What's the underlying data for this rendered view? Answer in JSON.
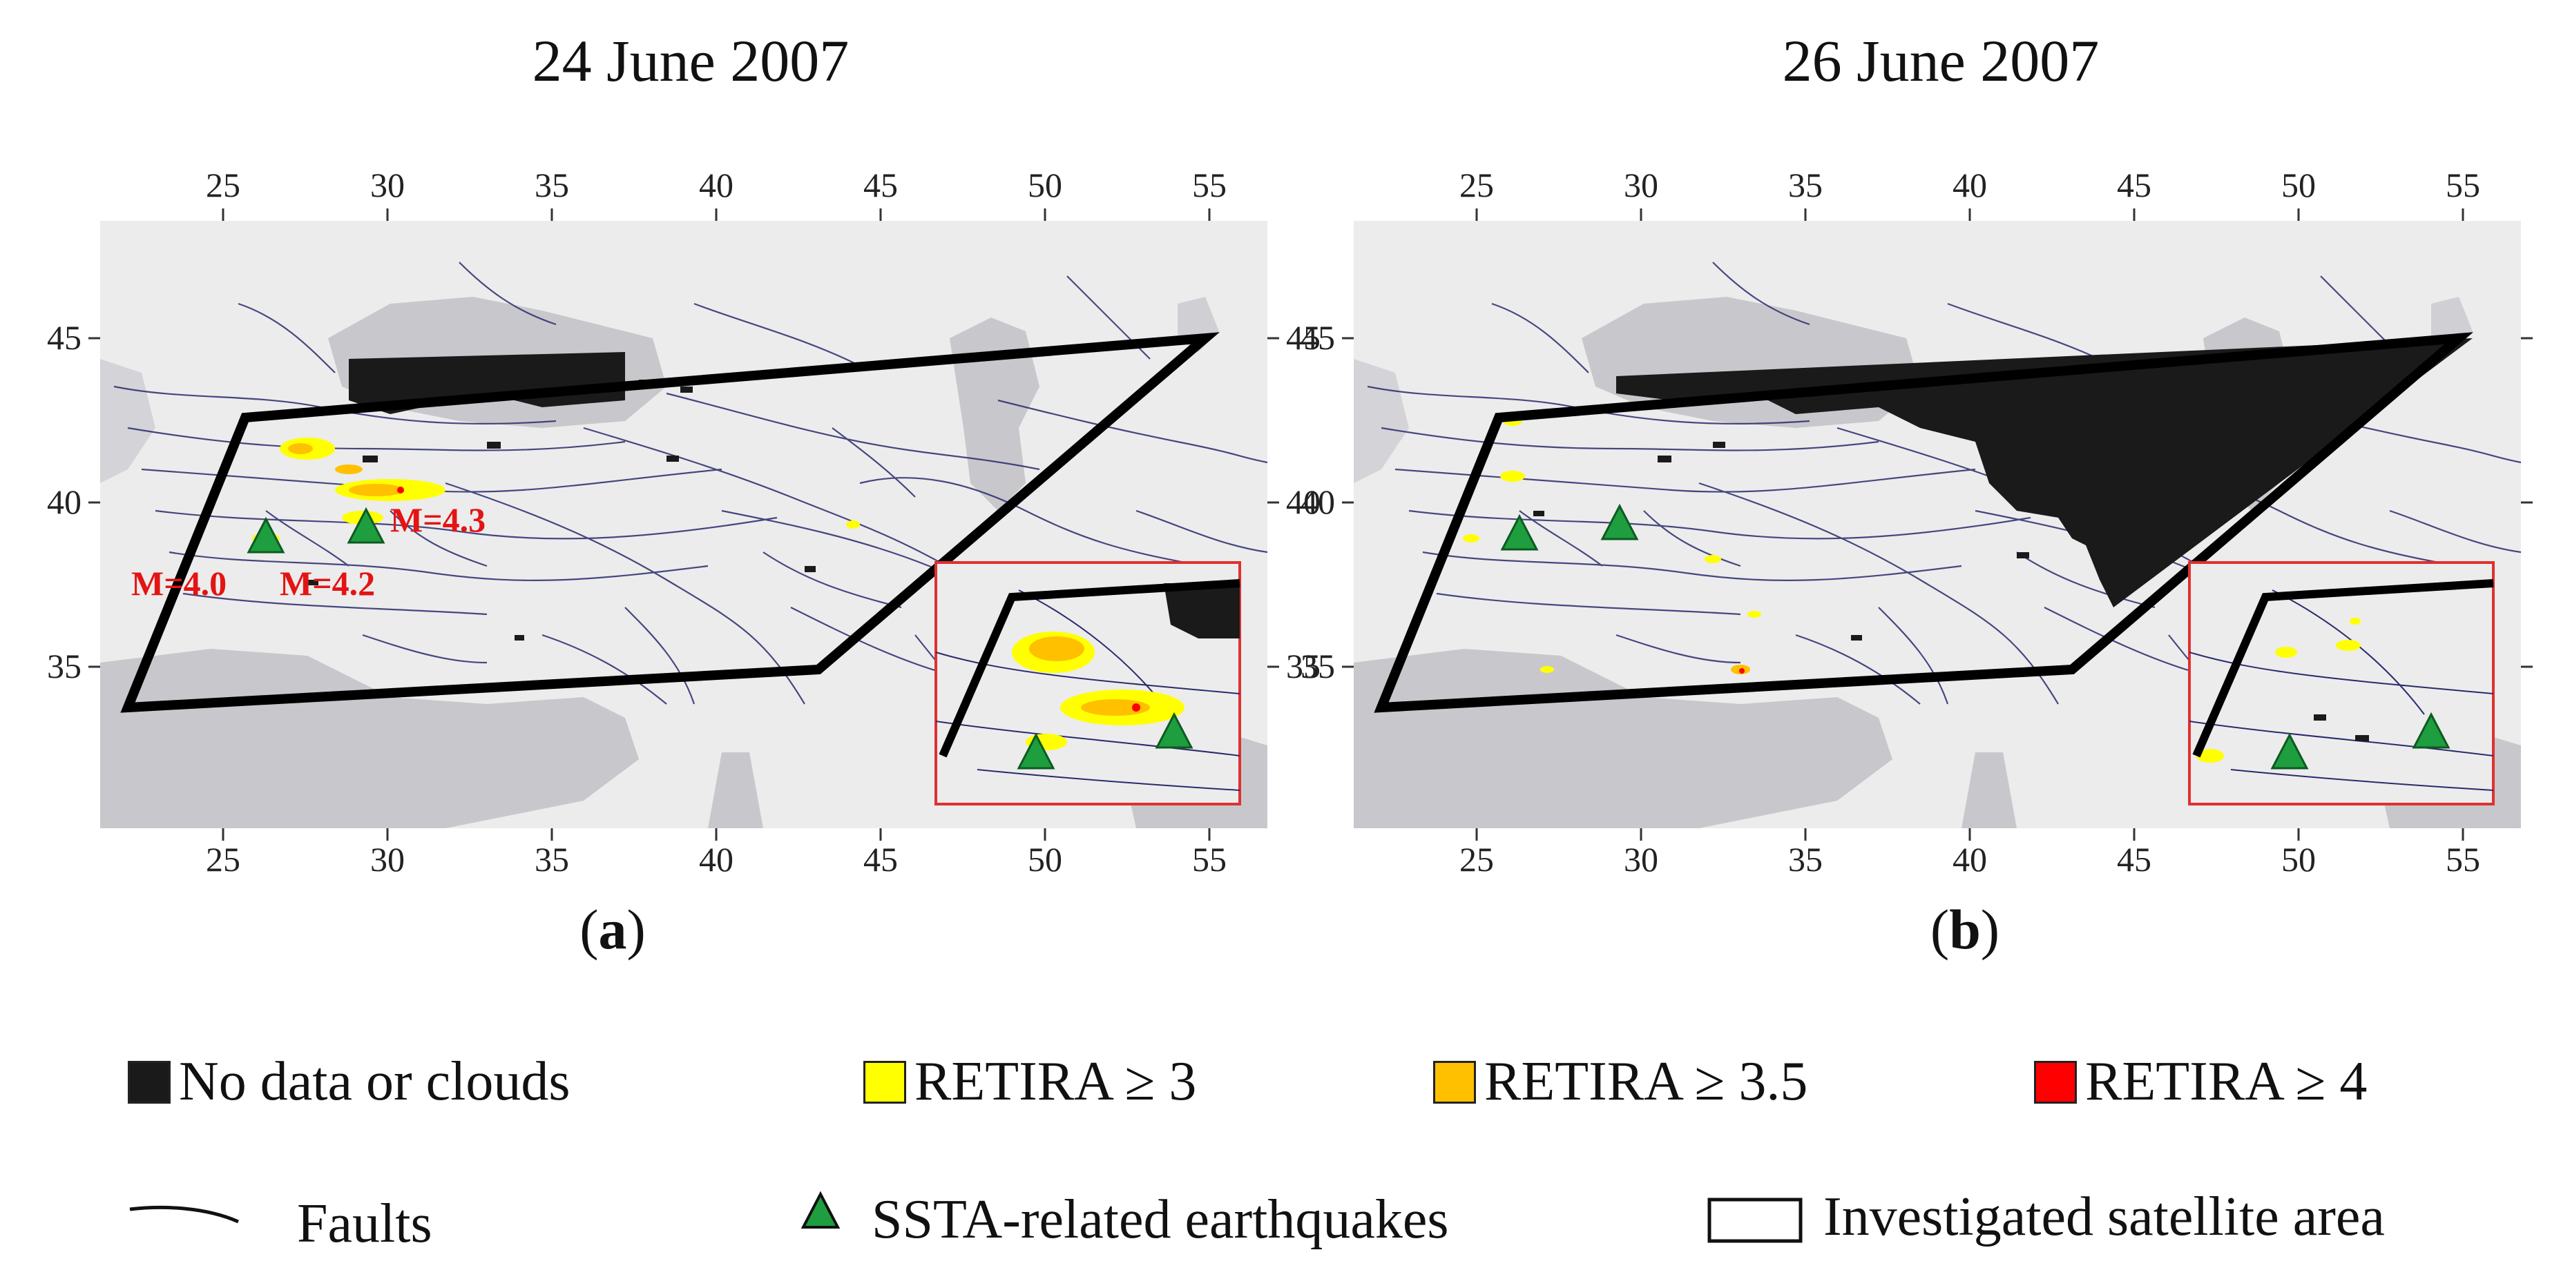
{
  "panels": [
    {
      "id": "a",
      "title": "24 June 2007",
      "caption_letter": "a",
      "earthquake_labels": [
        "M=4.0",
        "M=4.2",
        "M=4.3"
      ]
    },
    {
      "id": "b",
      "title": "26 June 2007",
      "caption_letter": "b",
      "earthquake_labels": []
    }
  ],
  "axis": {
    "lon_ticks": [
      "25",
      "30",
      "35",
      "40",
      "45",
      "50",
      "55"
    ],
    "lat_ticks": [
      "45",
      "40",
      "35"
    ]
  },
  "legend": {
    "no_data": "No data or clouds",
    "retira3": "RETIRA ≥ 3",
    "retira35": "RETIRA ≥ 3.5",
    "retira4": "RETIRA ≥ 4",
    "faults": "Faults",
    "ssta": "SSTA-related earthquakes",
    "area": "Investigated satellite area"
  },
  "colors": {
    "no_data": "#1a1a1a",
    "retira3": "#ffff00",
    "retira35": "#ffc000",
    "retira4": "#ff0000",
    "earthquake": "#1e9e3e",
    "inset_border": "#e03030",
    "land": "#ececec",
    "sea": "#c8c8cc",
    "fault": "#2a2a6e"
  }
}
